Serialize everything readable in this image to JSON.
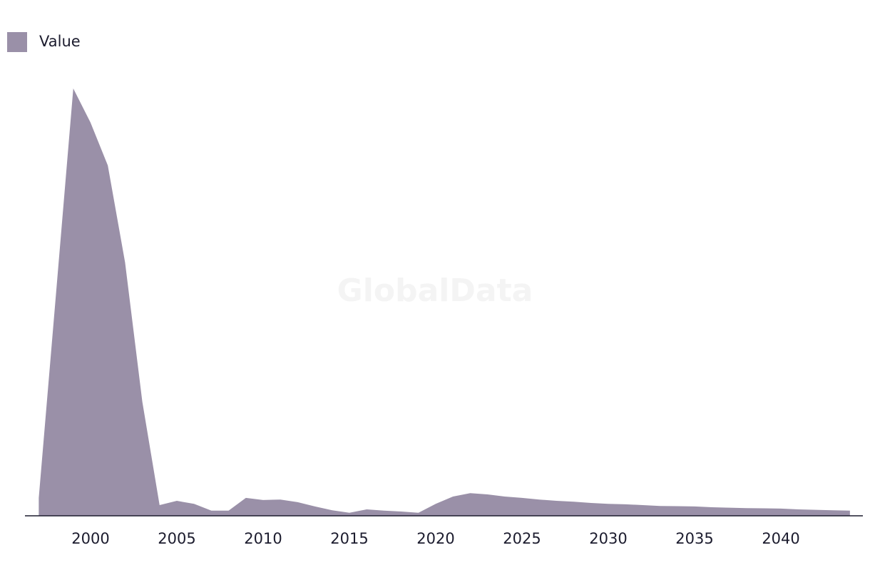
{
  "chart_data": {
    "type": "area",
    "watermark": "GlobalData",
    "x": [
      1997,
      1998,
      1999,
      2000,
      2001,
      2002,
      2003,
      2004,
      2005,
      2006,
      2007,
      2008,
      2009,
      2010,
      2011,
      2012,
      2013,
      2014,
      2015,
      2016,
      2017,
      2018,
      2019,
      2020,
      2021,
      2022,
      2023,
      2024,
      2025,
      2026,
      2027,
      2028,
      2029,
      2030,
      2031,
      2032,
      2033,
      2034,
      2035,
      2036,
      2037,
      2038,
      2039,
      2040,
      2041,
      2042,
      2043,
      2044
    ],
    "series": [
      {
        "name": "Value",
        "color": "#9a90a8",
        "values": [
          4.2,
          52,
          100,
          92,
          82,
          59.3,
          26.7,
          2.5,
          3.5,
          2.8,
          1.2,
          1.2,
          4.2,
          3.7,
          3.8,
          3.2,
          2.2,
          1.3,
          0.7,
          1.5,
          1.2,
          1.0,
          0.7,
          2.8,
          4.5,
          5.3,
          5.0,
          4.5,
          4.2,
          3.8,
          3.5,
          3.3,
          3.0,
          2.8,
          2.7,
          2.5,
          2.3,
          2.25,
          2.2,
          2.0,
          1.9,
          1.8,
          1.75,
          1.7,
          1.5,
          1.4,
          1.3,
          1.2
        ]
      }
    ],
    "xlim": [
      1996.2,
      2044.75
    ],
    "xticks": [
      2000,
      2005,
      2010,
      2015,
      2020,
      2025,
      2030,
      2035,
      2040
    ],
    "ylim": [
      0,
      100
    ],
    "legend": "top-left"
  }
}
